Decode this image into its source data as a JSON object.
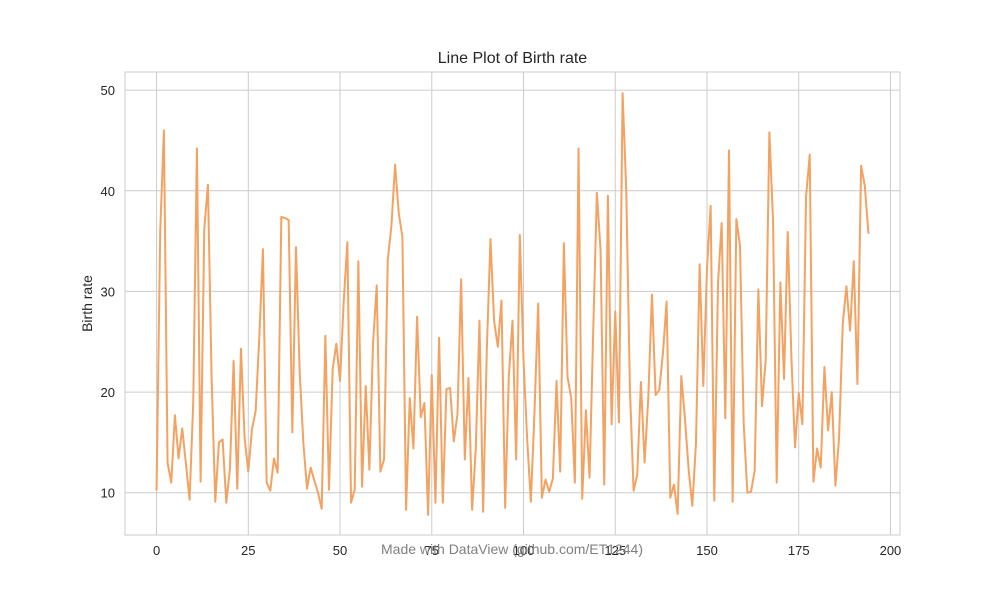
{
  "chart_data": {
    "type": "line",
    "title": "Line Plot of Birth rate",
    "xlabel": "",
    "ylabel": "Birth rate",
    "xlim": [
      -8.6,
      202.6
    ],
    "ylim": [
      5.8,
      51.8
    ],
    "xticks": [
      0,
      25,
      50,
      75,
      100,
      125,
      150,
      175,
      200
    ],
    "yticks": [
      10,
      20,
      30,
      40,
      50
    ],
    "grid": true,
    "legend": "none",
    "series": [
      {
        "color": "#f4a261",
        "x": [
          0,
          1,
          2,
          3,
          4,
          5,
          6,
          7,
          8,
          9,
          10,
          11,
          12,
          13,
          14,
          15,
          16,
          17,
          18,
          19,
          20,
          21,
          22,
          23,
          24,
          25,
          26,
          27,
          28,
          29,
          30,
          31,
          32,
          33,
          34,
          35,
          36,
          37,
          38,
          39,
          40,
          41,
          42,
          43,
          44,
          45,
          46,
          47,
          48,
          49,
          50,
          51,
          52,
          53,
          54,
          55,
          56,
          57,
          58,
          59,
          60,
          61,
          62,
          63,
          64,
          65,
          66,
          67,
          68,
          69,
          70,
          71,
          72,
          73,
          74,
          75,
          76,
          77,
          78,
          79,
          80,
          81,
          82,
          83,
          84,
          85,
          86,
          87,
          88,
          89,
          90,
          91,
          92,
          93,
          94,
          95,
          96,
          97,
          98,
          99,
          100,
          101,
          102,
          103,
          104,
          105,
          106,
          107,
          108,
          109,
          110,
          111,
          112,
          113,
          114,
          115,
          116,
          117,
          118,
          119,
          120,
          121,
          122,
          123,
          124,
          125,
          126,
          127,
          128,
          129,
          130,
          131,
          132,
          133,
          134,
          135,
          136,
          137,
          138,
          139,
          140,
          141,
          142,
          143,
          144,
          145,
          146,
          147,
          148,
          149,
          150,
          151,
          152,
          153,
          154,
          155,
          156,
          157,
          158,
          159,
          160,
          161,
          162,
          163,
          164,
          165,
          166,
          167,
          168,
          169,
          170,
          171,
          172,
          173,
          174,
          175,
          176,
          177,
          178,
          179,
          180,
          181,
          182,
          183,
          184,
          185,
          186,
          187,
          188,
          189,
          190,
          191,
          192,
          193,
          194
        ],
        "values": [
          10.3,
          36.0,
          46.0,
          13.0,
          11.0,
          17.7,
          13.4,
          16.4,
          12.9,
          9.3,
          19.0,
          44.2,
          11.1,
          36.2,
          40.6,
          21.4,
          9.1,
          15.0,
          15.3,
          9.0,
          12.4,
          23.1,
          10.4,
          24.3,
          15.4,
          12.1,
          16.3,
          18.1,
          25.4,
          34.2,
          11.0,
          10.2,
          13.4,
          12.0,
          37.4,
          37.3,
          37.1,
          16.0,
          34.4,
          22.0,
          15.0,
          10.4,
          12.5,
          11.2,
          10.0,
          8.4,
          25.6,
          10.3,
          22.3,
          24.8,
          21.1,
          29.0,
          34.9,
          9.0,
          10.3,
          33.0,
          10.6,
          20.6,
          12.3,
          24.9,
          30.6,
          12.1,
          13.3,
          33.1,
          36.5,
          42.6,
          37.8,
          35.4,
          8.3,
          19.4,
          14.4,
          27.5,
          17.5,
          18.9,
          7.8,
          21.7,
          9.0,
          25.4,
          9.0,
          20.3,
          20.4,
          15.1,
          17.8,
          31.2,
          13.3,
          21.4,
          8.3,
          14.4,
          27.1,
          8.1,
          24.2,
          35.2,
          27.0,
          24.5,
          29.1,
          8.5,
          21.6,
          27.1,
          13.3,
          35.6,
          23.2,
          15.3,
          9.1,
          18.1,
          28.8,
          9.5,
          11.3,
          10.1,
          11.4,
          21.1,
          12.1,
          34.8,
          21.5,
          19.4,
          11.0,
          44.2,
          9.4,
          18.2,
          11.5,
          26.1,
          39.8,
          34.1,
          10.8,
          39.5,
          16.8,
          28.0,
          17.0,
          49.7,
          40.1,
          20.3,
          10.2,
          11.8,
          21.0,
          13.0,
          19.4,
          29.7,
          19.7,
          20.2,
          23.9,
          29.0,
          9.5,
          10.8,
          7.9,
          21.6,
          17.3,
          12.3,
          8.7,
          14.9,
          32.7,
          20.6,
          32.3,
          38.5,
          9.2,
          30.8,
          36.8,
          17.4,
          44.0,
          9.1,
          37.2,
          34.5,
          16.9,
          10.0,
          10.1,
          12.2,
          30.2,
          18.6,
          23.2,
          45.8,
          37.0,
          11.0,
          30.9,
          21.3,
          35.9,
          23.5,
          14.5,
          19.9,
          16.8,
          39.4,
          43.6,
          11.1,
          14.4,
          12.5,
          22.5,
          16.2,
          20.0,
          10.7,
          15.5,
          26.8,
          30.5,
          26.1,
          33.0,
          20.8,
          42.5,
          40.5,
          35.8
        ]
      }
    ],
    "annotations": [
      "Made with DataView (github.com/ET1244)"
    ]
  }
}
